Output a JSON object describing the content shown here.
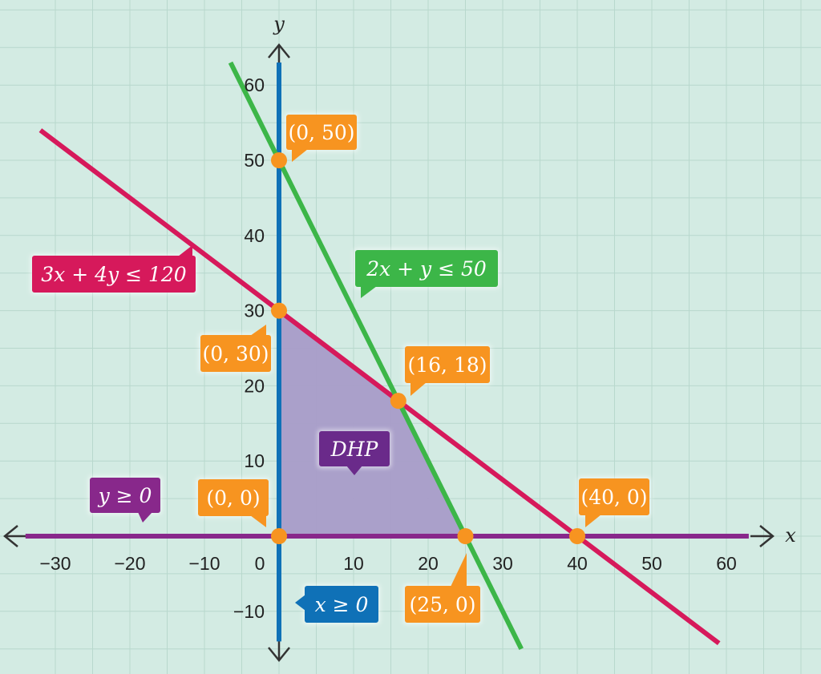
{
  "chart_data": {
    "type": "line",
    "title": "",
    "xlabel": "x",
    "ylabel": "y",
    "xlim": [
      -35,
      63
    ],
    "ylim": [
      -13.5,
      63
    ],
    "x_ticks": [
      -30,
      -20,
      -10,
      0,
      10,
      20,
      30,
      40,
      50,
      60
    ],
    "y_ticks": [
      -10,
      10,
      20,
      30,
      40,
      50,
      60
    ],
    "x_tick_labels": [
      "−30",
      "−20",
      "−10",
      "0",
      "10",
      "20",
      "30",
      "40",
      "50",
      "60"
    ],
    "y_tick_labels": [
      "−10",
      "10",
      "20",
      "30",
      "40",
      "50",
      "60"
    ],
    "grid": true,
    "series": [
      {
        "name": "3x + 4y ≤ 120",
        "x": [
          -32,
          59
        ],
        "y": [
          54,
          -14.25
        ]
      },
      {
        "name": "2x + y ≤ 50",
        "x": [
          -6.5,
          32.5
        ],
        "y": [
          63,
          -15
        ]
      },
      {
        "name": "x ≥ 0",
        "x": [
          0,
          0
        ],
        "y": [
          -14,
          63
        ]
      },
      {
        "name": "y ≥ 0",
        "x": [
          -34,
          63
        ],
        "y": [
          0,
          0
        ]
      }
    ],
    "region": {
      "name": "DHP",
      "polygon": [
        [
          0,
          0
        ],
        [
          0,
          30
        ],
        [
          16,
          18
        ],
        [
          25,
          0
        ]
      ]
    },
    "points": [
      {
        "x": 0,
        "y": 50,
        "label": "(0, 50)"
      },
      {
        "x": 0,
        "y": 30,
        "label": "(0, 30)"
      },
      {
        "x": 16,
        "y": 18,
        "label": "(16, 18)"
      },
      {
        "x": 0,
        "y": 0,
        "label": "(0, 0)"
      },
      {
        "x": 25,
        "y": 0,
        "label": "(25, 0)"
      },
      {
        "x": 40,
        "y": 0,
        "label": "(40, 0)"
      }
    ],
    "annotations": [
      {
        "text": "3x + 4y ≤ 120",
        "color": "#d6195b"
      },
      {
        "text": "2x + y ≤ 50",
        "color": "#3cb648"
      },
      {
        "text": "x ≥ 0",
        "color": "#0f71b7"
      },
      {
        "text": "y ≥ 0",
        "color": "#88288b"
      },
      {
        "text": "DHP",
        "color": "#6a2a8a"
      }
    ],
    "colors": {
      "background": "#d3ebe3",
      "grid": "#b8d8cd",
      "region": "#a89cc8",
      "point": "#f79420",
      "label_point": "#f79420",
      "axis_arrow": "#333333"
    }
  }
}
